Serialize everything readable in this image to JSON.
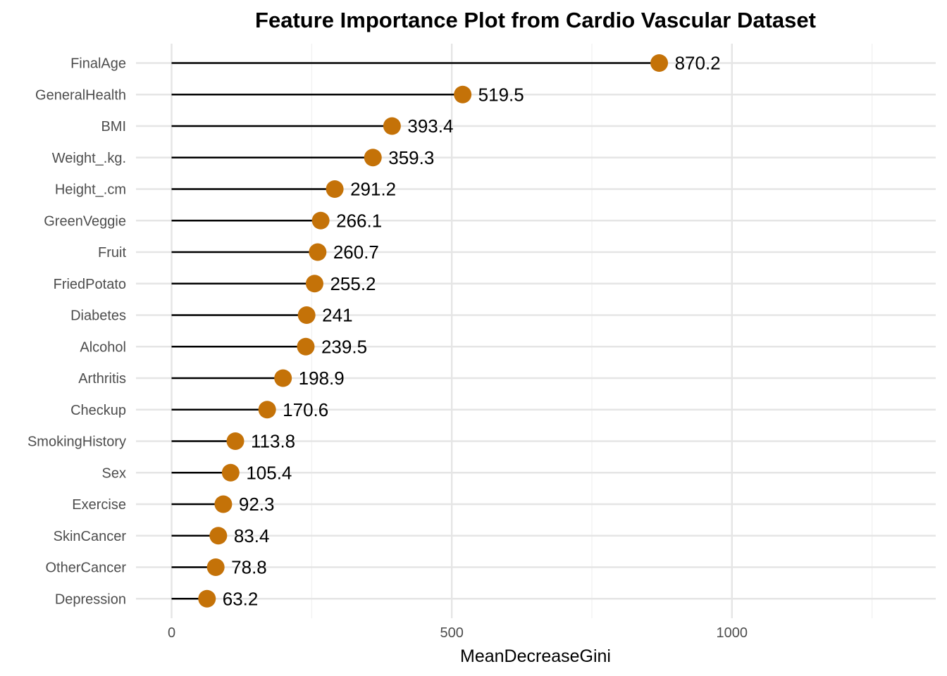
{
  "chart_data": {
    "type": "lollipop",
    "title": "Feature Importance Plot from Cardio Vascular Dataset",
    "xlabel": "MeanDecreaseGini",
    "ylabel": "",
    "xlim": [
      -65,
      1365
    ],
    "x_ticks": [
      0,
      500,
      1000
    ],
    "x_tick_labels": [
      "0",
      "500",
      "1000"
    ],
    "grid": true,
    "point_color": "#C47208",
    "stem_color": "#000000",
    "categories": [
      "FinalAge",
      "GeneralHealth",
      "BMI",
      "Weight_.kg.",
      "Height_.cm",
      "GreenVeggie",
      "Fruit",
      "FriedPotato",
      "Diabetes",
      "Alcohol",
      "Arthritis",
      "Checkup",
      "SmokingHistory",
      "Sex",
      "Exercise",
      "SkinCancer",
      "OtherCancer",
      "Depression"
    ],
    "values": [
      870.2,
      519.5,
      393.4,
      359.3,
      291.2,
      266.1,
      260.7,
      255.2,
      241,
      239.5,
      198.9,
      170.6,
      113.8,
      105.4,
      92.3,
      83.4,
      78.8,
      63.2
    ],
    "value_labels": [
      "870.2",
      "519.5",
      "393.4",
      "359.3",
      "291.2",
      "266.1",
      "260.7",
      "255.2",
      "241",
      "239.5",
      "198.9",
      "170.6",
      "113.8",
      "105.4",
      "92.3",
      "83.4",
      "78.8",
      "63.2"
    ]
  }
}
